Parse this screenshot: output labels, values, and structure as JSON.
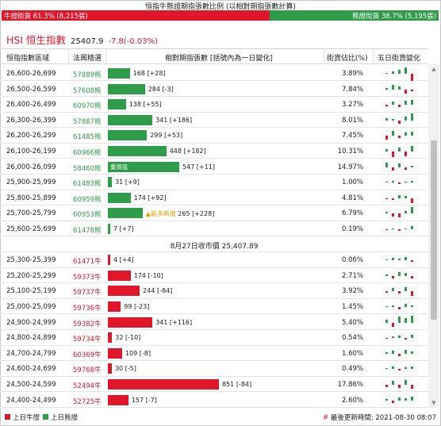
{
  "header": {
    "title": "恒指牛熊證期指張數比例 (以相對期指張數計算)",
    "bull_label": "牛證街貨 61.3% (8,215張)",
    "bear_label": "熊證街貨 38.7% (5,195張)",
    "bull_share": 0.613
  },
  "index": {
    "name": "HSI 恒生指數",
    "price": "25407.9",
    "change": "-7.8(-0.03%)"
  },
  "columns": [
    "恒指指數區域",
    "法興精選",
    "相對期指張數 [括號內為一日變化]",
    "街貨佔比(%)",
    "五日街貨變化"
  ],
  "bear_rows": [
    {
      "range": "26,600-26,699",
      "code": "57889熊",
      "contracts": 168,
      "label": "168 [+28]",
      "ratio": "3.89%",
      "spark": [
        [
          0,
          1
        ],
        [
          0,
          3
        ],
        [
          0,
          5
        ],
        [
          0,
          8
        ],
        [
          1,
          11
        ]
      ]
    },
    {
      "range": "26,500-26,599",
      "code": "57608熊",
      "contracts": 284,
      "label": "284 [-3]",
      "ratio": "7.84%",
      "spark": [
        [
          0,
          2
        ],
        [
          0,
          6
        ],
        [
          0,
          4
        ],
        [
          1,
          5
        ],
        [
          1,
          2
        ]
      ]
    },
    {
      "range": "26,400-26,499",
      "code": "60970熊",
      "contracts": 138,
      "label": "138 [+55]",
      "ratio": "3.27%",
      "spark": [
        [
          1,
          2
        ],
        [
          0,
          4
        ],
        [
          1,
          3
        ],
        [
          0,
          5
        ],
        [
          0,
          6
        ]
      ]
    },
    {
      "range": "26,300-26,399",
      "code": "57887熊",
      "contracts": 341,
      "label": "341 [+186]",
      "ratio": "8.01%",
      "spark": [
        [
          0,
          3
        ],
        [
          0,
          2
        ],
        [
          1,
          4
        ],
        [
          0,
          5
        ],
        [
          0,
          9
        ]
      ]
    },
    {
      "range": "26,200-26,299",
      "code": "61485熊",
      "contracts": 299,
      "label": "299 [+53]",
      "ratio": "7.45%",
      "spark": [
        [
          1,
          5
        ],
        [
          0,
          6
        ],
        [
          1,
          3
        ],
        [
          0,
          4
        ],
        [
          0,
          5
        ]
      ]
    },
    {
      "range": "26,100-26,199",
      "code": "60966熊",
      "contracts": 448,
      "label": "448 [+182]",
      "ratio": "10.31%",
      "spark": [
        [
          0,
          3
        ],
        [
          1,
          7
        ],
        [
          0,
          5
        ],
        [
          1,
          6
        ],
        [
          0,
          7
        ]
      ]
    },
    {
      "range": "26,000-26,099",
      "code": "58460熊",
      "contracts": 547,
      "label": "547 [+11]",
      "ratio": "14.97%",
      "badge": "重貨區",
      "spark": [
        [
          0,
          6
        ],
        [
          1,
          4
        ],
        [
          0,
          5
        ],
        [
          1,
          3
        ],
        [
          0,
          2
        ]
      ]
    },
    {
      "range": "25,900-25,999",
      "code": "61483熊",
      "contracts": 31,
      "label": "31 [+9]",
      "ratio": "1.00%",
      "spark": [
        [
          0,
          1
        ],
        [
          0,
          2
        ],
        [
          1,
          2
        ],
        [
          0,
          1
        ],
        [
          0,
          2
        ]
      ]
    },
    {
      "range": "25,800-25,899",
      "code": "60959熊",
      "contracts": 174,
      "label": "174 [+92]",
      "ratio": "4.81%",
      "spark": [
        [
          1,
          1
        ],
        [
          1,
          2
        ],
        [
          0,
          4
        ],
        [
          0,
          3
        ],
        [
          1,
          6
        ]
      ]
    },
    {
      "range": "25,700-25,799",
      "code": "60953熊",
      "contracts": 265,
      "label": "265 [+228]",
      "ratio": "6.79%",
      "star": "▲最多新增",
      "spark": [
        [
          0,
          2
        ],
        [
          1,
          4
        ],
        [
          1,
          5
        ],
        [
          0,
          3
        ],
        [
          0,
          8
        ]
      ]
    },
    {
      "range": "25,600-25,699",
      "code": "61478熊",
      "contracts": 7,
      "label": "7 [+7]",
      "ratio": "0.19%",
      "spark": [
        [
          1,
          1
        ],
        [
          0,
          1
        ],
        [
          1,
          2
        ],
        [
          0,
          1
        ],
        [
          0,
          4
        ]
      ]
    }
  ],
  "mid_label": "8月27日收市價 25,407.89",
  "bull_rows": [
    {
      "range": "25,300-25,399",
      "code": "61471牛",
      "contracts": 4,
      "label": "4 [+4]",
      "ratio": "0.06%",
      "spark": [
        [
          0,
          1
        ],
        [
          0,
          3
        ],
        [
          0,
          2
        ],
        [
          0,
          4
        ],
        [
          1,
          2
        ]
      ]
    },
    {
      "range": "25,200-25,299",
      "code": "59373牛",
      "contracts": 174,
      "label": "174 [-10]",
      "ratio": "2.71%",
      "spark": [
        [
          0,
          2
        ],
        [
          1,
          3
        ],
        [
          0,
          5
        ],
        [
          0,
          4
        ],
        [
          1,
          3
        ]
      ]
    },
    {
      "range": "25,100-25,199",
      "code": "59737牛",
      "contracts": 244,
      "label": "244 [-84]",
      "ratio": "3.92%",
      "spark": [
        [
          1,
          2
        ],
        [
          0,
          4
        ],
        [
          1,
          3
        ],
        [
          0,
          5
        ],
        [
          1,
          6
        ]
      ]
    },
    {
      "range": "25,000-25,099",
      "code": "59736牛",
      "contracts": 99,
      "label": "99 [-23]",
      "ratio": "1.45%",
      "spark": [
        [
          0,
          1
        ],
        [
          0,
          2
        ],
        [
          1,
          3
        ],
        [
          0,
          4
        ],
        [
          0,
          2
        ]
      ]
    },
    {
      "range": "24,900-24,999",
      "code": "59382牛",
      "contracts": 341,
      "label": "341 [+116]",
      "ratio": "5.40%",
      "spark": [
        [
          0,
          4
        ],
        [
          1,
          5
        ],
        [
          0,
          8
        ],
        [
          0,
          6
        ],
        [
          0,
          9
        ]
      ]
    },
    {
      "range": "24,800-24,899",
      "code": "59734牛",
      "contracts": 32,
      "label": "32 [-10]",
      "ratio": "0.54%",
      "spark": [
        [
          1,
          1
        ],
        [
          0,
          2
        ],
        [
          0,
          3
        ],
        [
          1,
          2
        ],
        [
          0,
          4
        ]
      ]
    },
    {
      "range": "24,700-24,799",
      "code": "60369牛",
      "contracts": 109,
      "label": "109 [-8]",
      "ratio": "1.60%",
      "spark": [
        [
          0,
          2
        ],
        [
          0,
          4
        ],
        [
          1,
          3
        ],
        [
          0,
          5
        ],
        [
          0,
          3
        ]
      ]
    },
    {
      "range": "24,600-24,699",
      "code": "59768牛",
      "contracts": 30,
      "label": "30 [-5]",
      "ratio": "0.49%",
      "spark": [
        [
          0,
          1
        ],
        [
          0,
          3
        ],
        [
          1,
          2
        ],
        [
          0,
          2
        ],
        [
          0,
          3
        ]
      ]
    },
    {
      "range": "24,500-24,599",
      "code": "52494牛",
      "contracts": 851,
      "label": "851 [-84]",
      "ratio": "17.86%",
      "spark": [
        [
          1,
          3
        ],
        [
          0,
          5
        ],
        [
          1,
          4
        ],
        [
          0,
          6
        ],
        [
          1,
          5
        ]
      ]
    },
    {
      "range": "24,400-24,499",
      "code": "52725牛",
      "contracts": 157,
      "label": "157 [-7]",
      "ratio": "2.60%",
      "spark": [
        [
          0,
          2
        ],
        [
          1,
          3
        ],
        [
          0,
          4
        ],
        [
          0,
          3
        ],
        [
          0,
          5
        ]
      ]
    }
  ],
  "footer": {
    "legend_bull": "上日牛證",
    "legend_bear": "上日熊證",
    "updated": "最後更新時間: 2021-08-30 08:07"
  },
  "colors": {
    "bull": "#e0162b",
    "bear": "#2f9c4a"
  }
}
